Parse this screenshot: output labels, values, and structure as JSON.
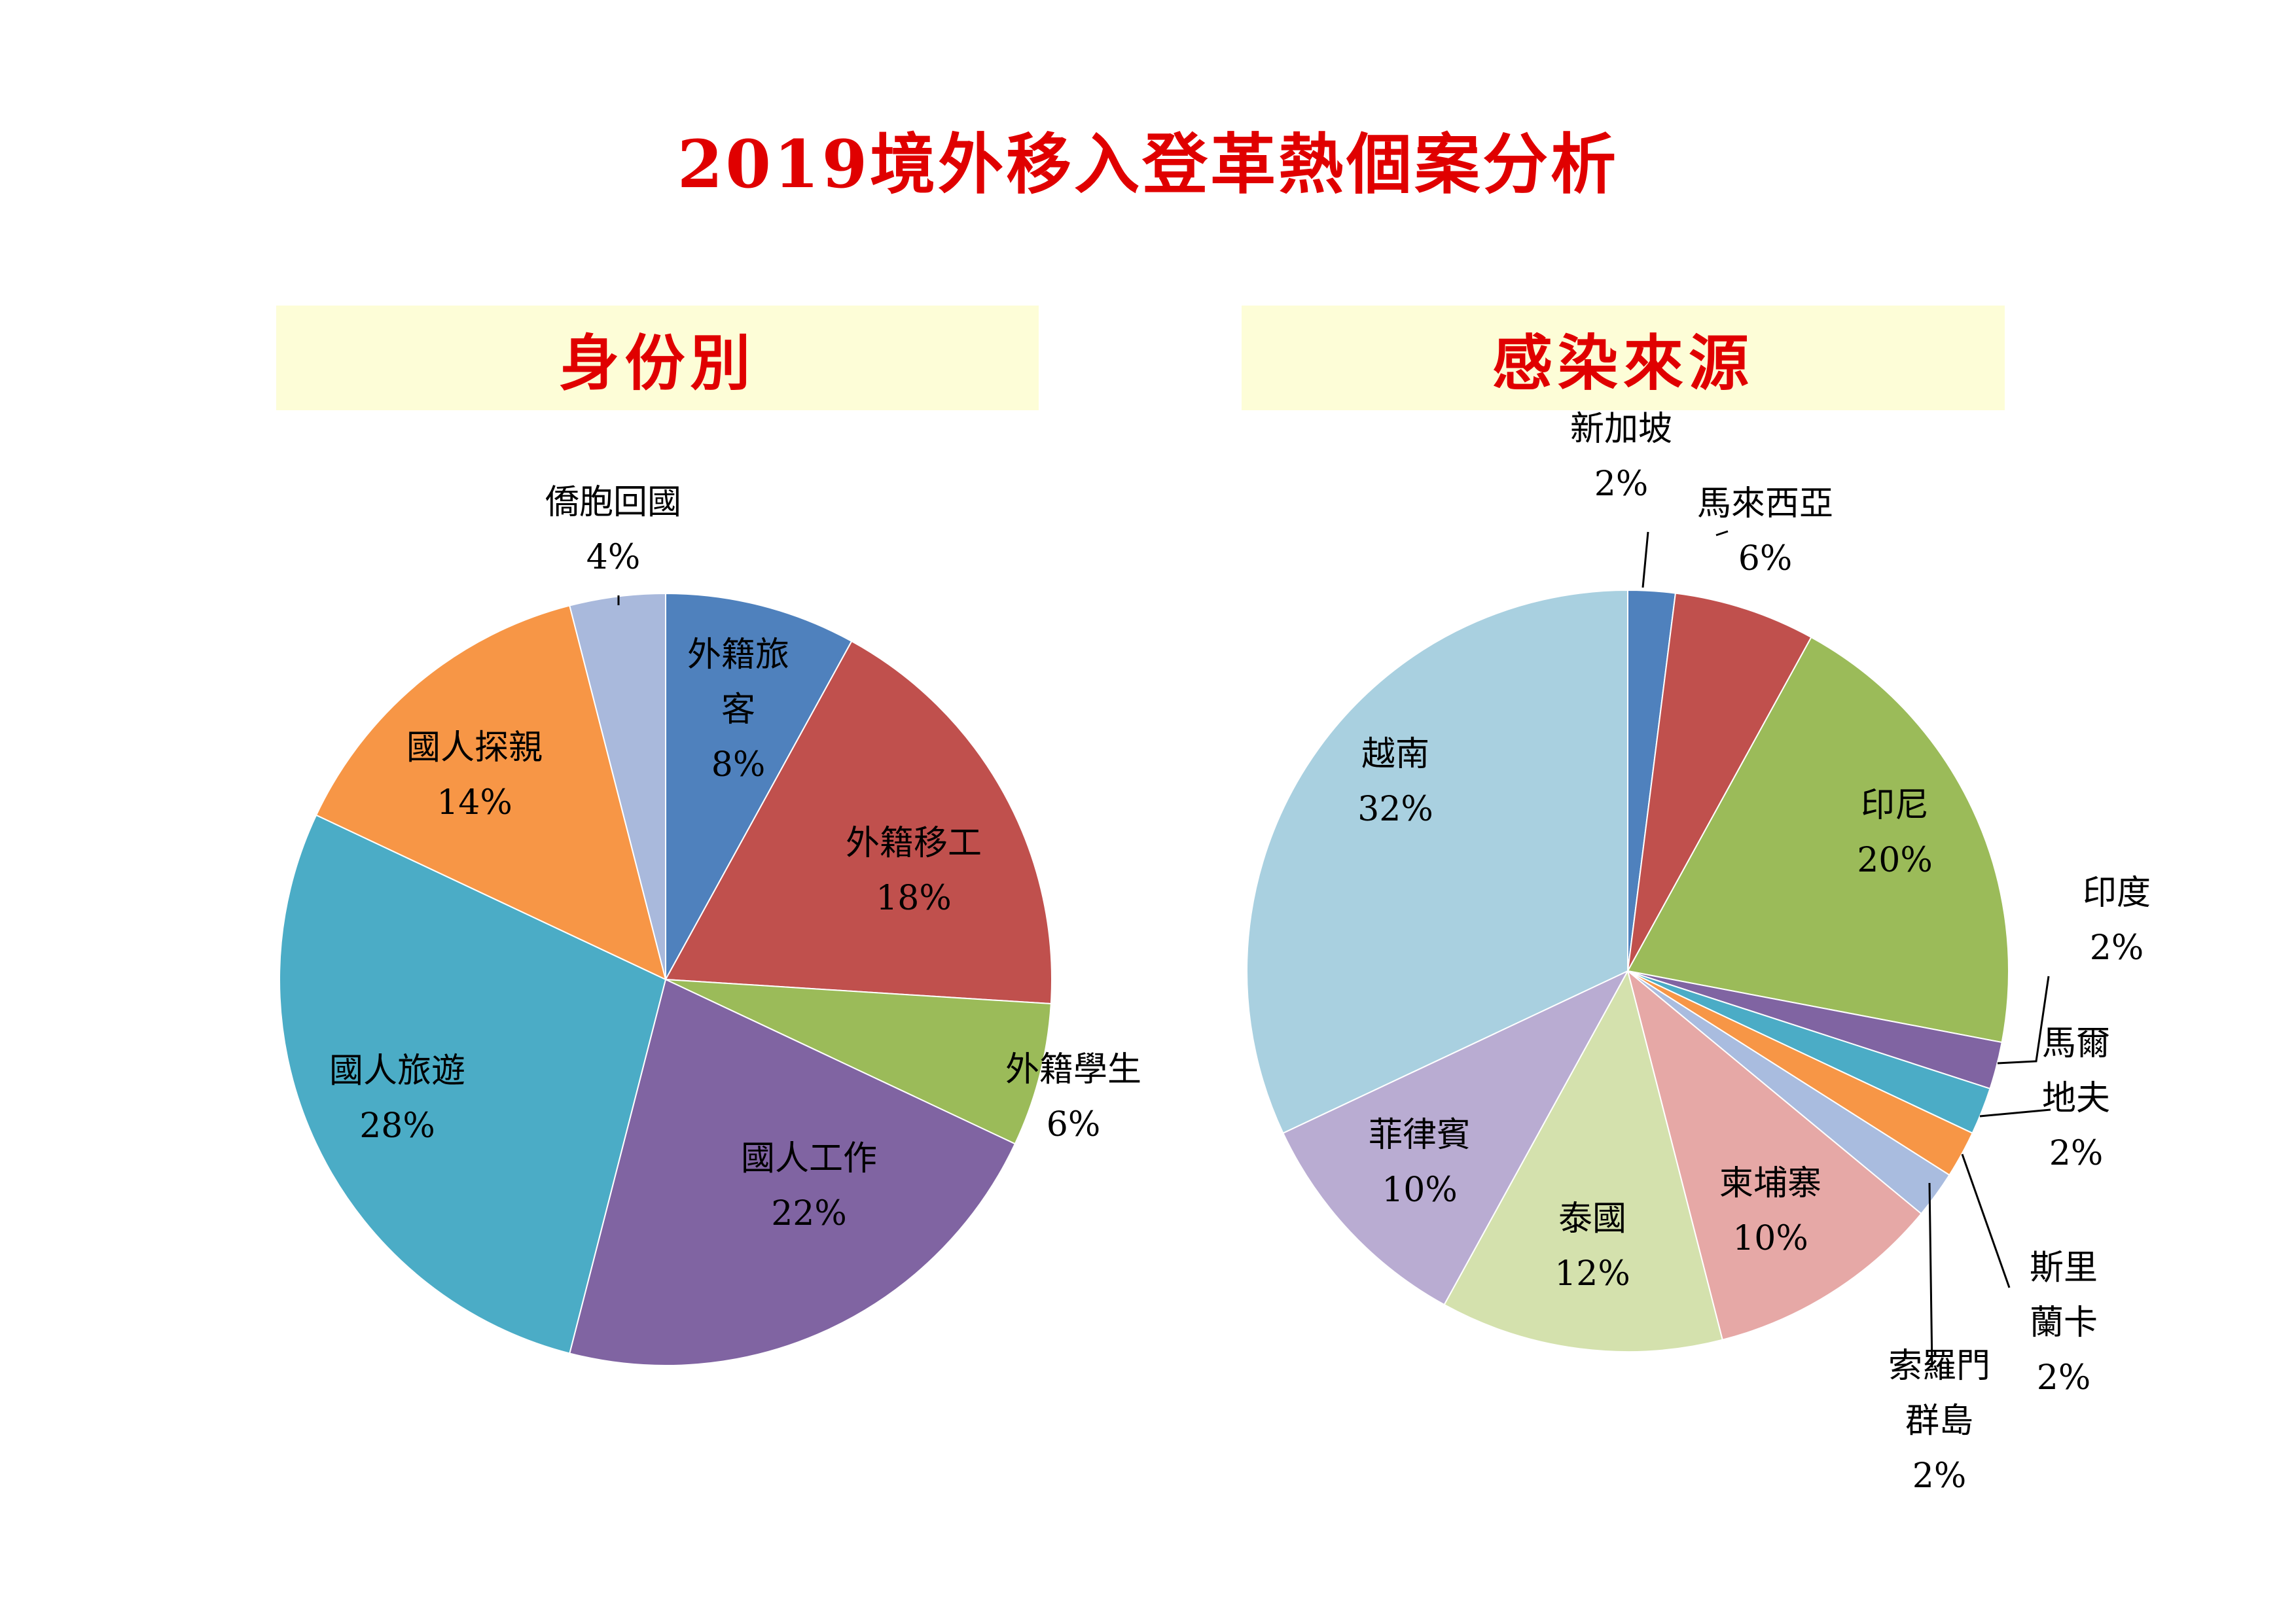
{
  "title": "2019境外移入登革熱個案分析",
  "chart_data": [
    {
      "type": "pie",
      "title": "身份別",
      "slices": [
        {
          "label": "外籍旅客",
          "display_lines": [
            "外籍旅",
            "客"
          ],
          "pct_text": "8%",
          "value": 8,
          "color": "#4f81bd"
        },
        {
          "label": "外籍移工",
          "display_lines": [
            "外籍移工"
          ],
          "pct_text": "18%",
          "value": 18,
          "color": "#c0504d"
        },
        {
          "label": "外籍學生",
          "display_lines": [
            "外籍學生"
          ],
          "pct_text": "6%",
          "value": 6,
          "color": "#9bbb59"
        },
        {
          "label": "國人工作",
          "display_lines": [
            "國人工作"
          ],
          "pct_text": "22%",
          "value": 22,
          "color": "#8064a2"
        },
        {
          "label": "國人旅遊",
          "display_lines": [
            "國人旅遊"
          ],
          "pct_text": "28%",
          "value": 28,
          "color": "#4bacc6"
        },
        {
          "label": "國人探親",
          "display_lines": [
            "國人探親"
          ],
          "pct_text": "14%",
          "value": 14,
          "color": "#f79646"
        },
        {
          "label": "僑胞回國",
          "display_lines": [
            "僑胞回國"
          ],
          "pct_text": "4%",
          "value": 4,
          "color": "#a9b9dc"
        }
      ]
    },
    {
      "type": "pie",
      "title": "感染來源",
      "slices": [
        {
          "label": "新加坡",
          "display_lines": [
            "新加坡"
          ],
          "pct_text": "2%",
          "value": 2,
          "color": "#4f81bd"
        },
        {
          "label": "馬來西亞",
          "display_lines": [
            "馬來西亞"
          ],
          "pct_text": "6%",
          "value": 6,
          "color": "#c0504d"
        },
        {
          "label": "印尼",
          "display_lines": [
            "印尼"
          ],
          "pct_text": "20%",
          "value": 20,
          "color": "#9bbb59"
        },
        {
          "label": "印度",
          "display_lines": [
            "印度"
          ],
          "pct_text": "2%",
          "value": 2,
          "color": "#8064a2"
        },
        {
          "label": "馬爾地夫",
          "display_lines": [
            "馬爾",
            "地夫"
          ],
          "pct_text": "2%",
          "value": 2,
          "color": "#4bacc6"
        },
        {
          "label": "斯里蘭卡",
          "display_lines": [
            "斯里",
            "蘭卡"
          ],
          "pct_text": "2%",
          "value": 2,
          "color": "#f79646"
        },
        {
          "label": "索羅門群島",
          "display_lines": [
            "索羅門",
            "群島"
          ],
          "pct_text": "2%",
          "value": 2,
          "color": "#a9bcdf"
        },
        {
          "label": "柬埔寨",
          "display_lines": [
            "柬埔寨"
          ],
          "pct_text": "10%",
          "value": 10,
          "color": "#e6a8a6"
        },
        {
          "label": "泰國",
          "display_lines": [
            "泰國"
          ],
          "pct_text": "12%",
          "value": 12,
          "color": "#d4e1ad"
        },
        {
          "label": "菲律賓",
          "display_lines": [
            "菲律賓"
          ],
          "pct_text": "10%",
          "value": 10,
          "color": "#b9acd2"
        },
        {
          "label": "越南",
          "display_lines": [
            "越南"
          ],
          "pct_text": "32%",
          "value": 32,
          "color": "#a9d0e0"
        }
      ]
    }
  ]
}
